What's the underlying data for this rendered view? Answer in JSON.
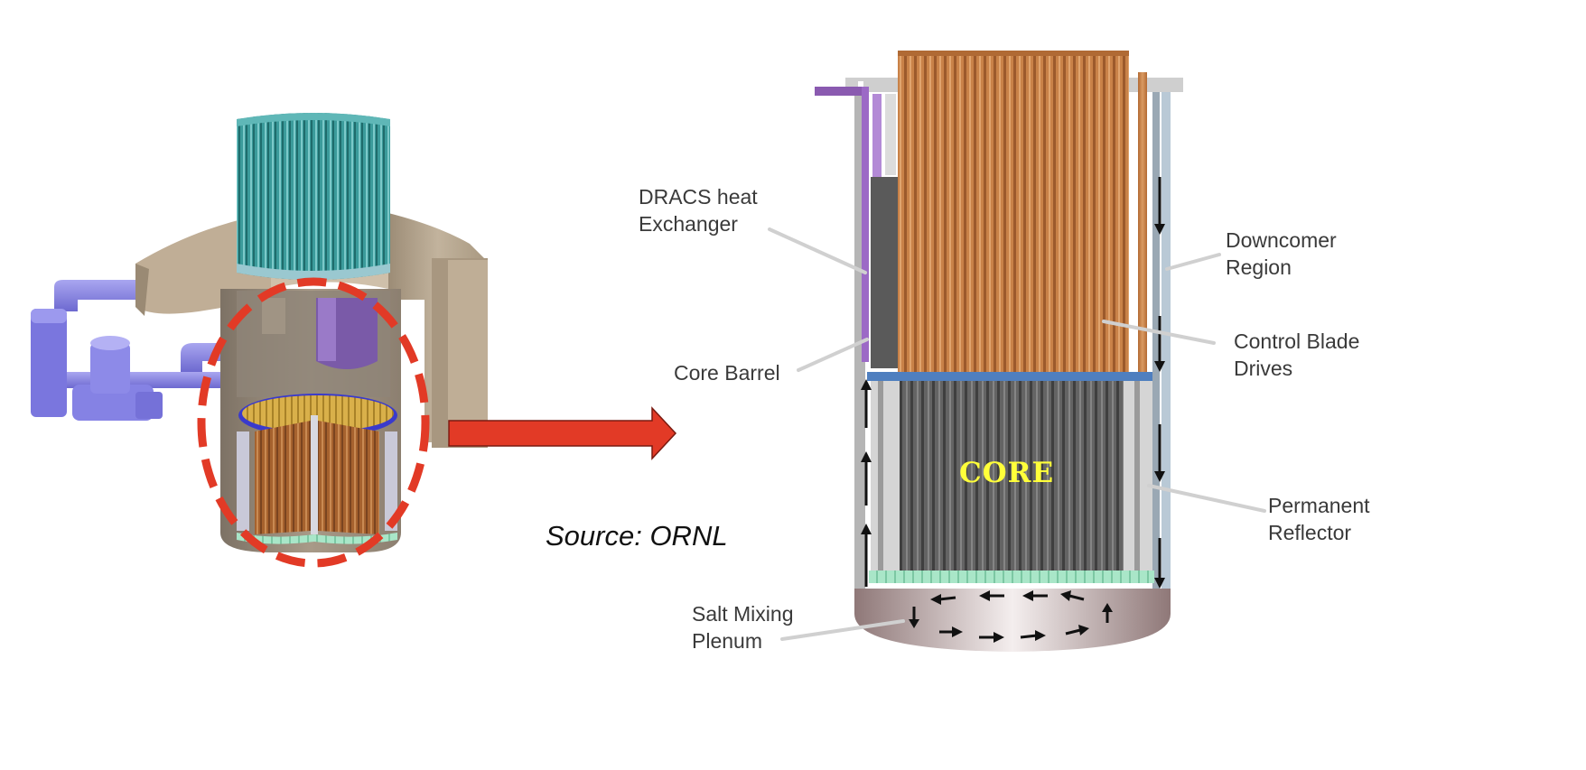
{
  "colors": {
    "highlight_red": "#e23a26",
    "core_label_yellow": "#ffff3a",
    "leader_line": "#d0d0d0",
    "loop_pipe": "#8a86e8",
    "tan_structure": "#b8a78f",
    "teal_tubes": "#3a9a9a",
    "copper_drives": "#c77e44",
    "core_grey": "#5e5e5e",
    "reflector_mint": "#a7e5c6",
    "plenum": "#bba4a4"
  },
  "source_caption": "Source: ORNL",
  "core_label": "CORE",
  "callouts": {
    "dracs": [
      "DRACS heat",
      "Exchanger"
    ],
    "core_barrel": [
      "Core Barrel"
    ],
    "downcomer": [
      "Downcomer",
      "Region"
    ],
    "control_blade": [
      "Control Blade",
      "Drives"
    ],
    "permanent_reflector": [
      "Permanent",
      "Reflector"
    ],
    "salt_mixing": [
      "Salt Mixing",
      "Plenum"
    ]
  }
}
